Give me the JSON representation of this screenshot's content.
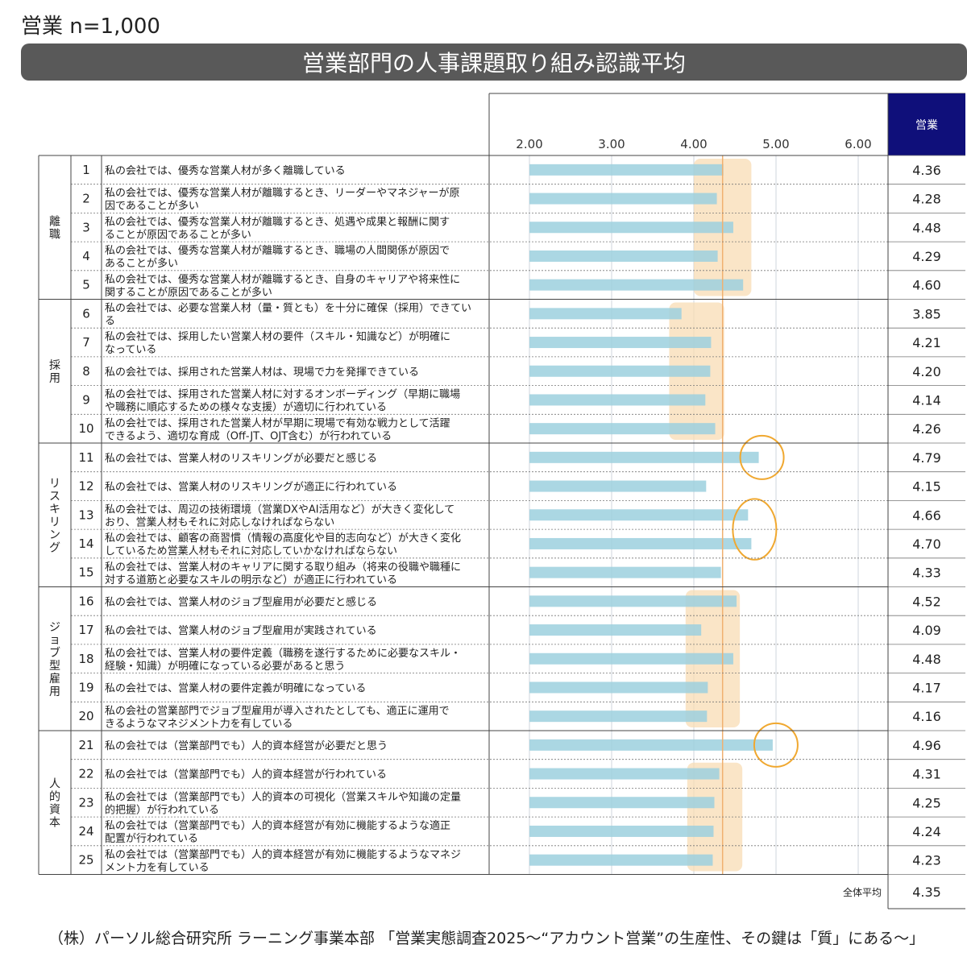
{
  "header": {
    "segment_label": "営業 n=1,000",
    "title": "営業部門の人事課題取り組み認識平均"
  },
  "chart_data": {
    "type": "bar",
    "orientation": "horizontal",
    "title": "営業部門の人事課題取り組み認識平均",
    "value_column_header": "営業",
    "xlim": [
      2.0,
      6.0
    ],
    "x_ticks": [
      "2.00",
      "3.00",
      "4.00",
      "5.00",
      "6.00"
    ],
    "bar_color": "#9cd0de",
    "highlight_color": "#f8dcb4",
    "circle_color": "#f0a830",
    "reference_line_color": "#f0b070",
    "overall_average_label": "全体平均",
    "overall_average": 4.35,
    "overall_average_text": "4.35",
    "groups": [
      {
        "name": "離職",
        "start": 0,
        "end": 4
      },
      {
        "name": "採用",
        "start": 5,
        "end": 9
      },
      {
        "name": "リスキリング",
        "start": 10,
        "end": 14
      },
      {
        "name": "ジョブ型雇用",
        "start": 15,
        "end": 19
      },
      {
        "name": "人的資本",
        "start": 20,
        "end": 24
      }
    ],
    "highlight_boxes": [
      {
        "start": 0,
        "end": 4,
        "from": 4.0,
        "to": 4.7
      },
      {
        "start": 5,
        "end": 9,
        "from": 3.7,
        "to": 4.37
      },
      {
        "start": 15,
        "end": 19,
        "from": 3.9,
        "to": 4.56
      },
      {
        "start": 21,
        "end": 24,
        "from": 3.92,
        "to": 4.59
      }
    ],
    "circled": [
      {
        "start": 10,
        "end": 10
      },
      {
        "start": 12,
        "end": 13
      },
      {
        "start": 20,
        "end": 20
      }
    ],
    "rows": [
      {
        "no": "1",
        "lines": [
          "私の会社では、優秀な営業人材が多く離職している"
        ],
        "value": 4.36,
        "value_text": "4.36"
      },
      {
        "no": "2",
        "lines": [
          "私の会社では、優秀な営業人材が離職するとき、リーダーやマネジャーが原",
          "因であることが多い"
        ],
        "value": 4.28,
        "value_text": "4.28"
      },
      {
        "no": "3",
        "lines": [
          "私の会社では、優秀な営業人材が離職するとき、処遇や成果と報酬に関す",
          "ることが原因であることが多い"
        ],
        "value": 4.48,
        "value_text": "4.48"
      },
      {
        "no": "4",
        "lines": [
          "私の会社では、優秀な営業人材が離職するとき、職場の人間関係が原因で",
          "あることが多い"
        ],
        "value": 4.29,
        "value_text": "4.29"
      },
      {
        "no": "5",
        "lines": [
          "私の会社では、優秀な営業人材が離職するとき、自身のキャリアや将来性に",
          "関することが原因であることが多い"
        ],
        "value": 4.6,
        "value_text": "4.60"
      },
      {
        "no": "6",
        "lines": [
          "私の会社では、必要な営業人材（量・質とも）を十分に確保（採用）できてい",
          "る"
        ],
        "value": 3.85,
        "value_text": "3.85"
      },
      {
        "no": "7",
        "lines": [
          "私の会社では、採用したい営業人材の要件（スキル・知識など）が明確に",
          "なっている"
        ],
        "value": 4.21,
        "value_text": "4.21"
      },
      {
        "no": "8",
        "lines": [
          "私の会社では、採用された営業人材は、現場で力を発揮できている"
        ],
        "value": 4.2,
        "value_text": "4.20"
      },
      {
        "no": "9",
        "lines": [
          "私の会社では、採用された営業人材に対するオンボーディング（早期に職場",
          "や職務に順応するための様々な支援）が適切に行われている"
        ],
        "value": 4.14,
        "value_text": "4.14"
      },
      {
        "no": "10",
        "lines": [
          "私の会社では、採用された営業人材が早期に現場で有効な戦力として活躍",
          "できるよう、適切な育成（Off-JT、OJT含む）が行われている"
        ],
        "value": 4.26,
        "value_text": "4.26"
      },
      {
        "no": "11",
        "lines": [
          "私の会社では、営業人材のリスキリングが必要だと感じる"
        ],
        "value": 4.79,
        "value_text": "4.79"
      },
      {
        "no": "12",
        "lines": [
          "私の会社では、営業人材のリスキリングが適正に行われている"
        ],
        "value": 4.15,
        "value_text": "4.15"
      },
      {
        "no": "13",
        "lines": [
          "私の会社では、周辺の技術環境（営業DXやAI活用など）が大きく変化して",
          "おり、営業人材もそれに対応しなければならない"
        ],
        "value": 4.66,
        "value_text": "4.66"
      },
      {
        "no": "14",
        "lines": [
          "私の会社では、顧客の商習慣（情報の高度化や目的志向など）が大きく変化",
          "しているため営業人材もそれに対応していかなければならない"
        ],
        "value": 4.7,
        "value_text": "4.70"
      },
      {
        "no": "15",
        "lines": [
          "私の会社では、営業人材のキャリアに関する取り組み（将来の役職や職種に",
          "対する道筋と必要なスキルの明示など）が適正に行われている"
        ],
        "value": 4.33,
        "value_text": "4.33"
      },
      {
        "no": "16",
        "lines": [
          "私の会社では、営業人材のジョブ型雇用が必要だと感じる"
        ],
        "value": 4.52,
        "value_text": "4.52"
      },
      {
        "no": "17",
        "lines": [
          "私の会社では、営業人材のジョブ型雇用が実践されている"
        ],
        "value": 4.09,
        "value_text": "4.09"
      },
      {
        "no": "18",
        "lines": [
          "私の会社では、営業人材の要件定義（職務を遂行するために必要なスキル・",
          "経験・知識）が明確になっている必要があると思う"
        ],
        "value": 4.48,
        "value_text": "4.48"
      },
      {
        "no": "19",
        "lines": [
          "私の会社では、営業人材の要件定義が明確になっている"
        ],
        "value": 4.17,
        "value_text": "4.17"
      },
      {
        "no": "20",
        "lines": [
          "私の会社の営業部門でジョブ型雇用が導入されたとしても、適正に運用で",
          "きるようなマネジメント力を有している"
        ],
        "value": 4.16,
        "value_text": "4.16"
      },
      {
        "no": "21",
        "lines": [
          "私の会社では（営業部門でも）人的資本経営が必要だと思う"
        ],
        "value": 4.96,
        "value_text": "4.96"
      },
      {
        "no": "22",
        "lines": [
          "私の会社では（営業部門でも）人的資本経営が行われている"
        ],
        "value": 4.31,
        "value_text": "4.31"
      },
      {
        "no": "23",
        "lines": [
          "私の会社では（営業部門でも）人的資本の可視化（営業スキルや知識の定量",
          "的把握）が行われている"
        ],
        "value": 4.25,
        "value_text": "4.25"
      },
      {
        "no": "24",
        "lines": [
          "私の会社では（営業部門でも）人的資本経営が有効に機能するような適正",
          "配置が行われている"
        ],
        "value": 4.24,
        "value_text": "4.24"
      },
      {
        "no": "25",
        "lines": [
          "私の会社では（営業部門でも）人的資本経営が有効に機能するようなマネジ",
          "メント力を有している"
        ],
        "value": 4.23,
        "value_text": "4.23"
      }
    ]
  },
  "footer": {
    "source": "（株）パーソル総合研究所 ラーニング事業本部 「営業実態調査2025～“アカウント営業”の生産性、その鍵は「質」にある～」"
  }
}
